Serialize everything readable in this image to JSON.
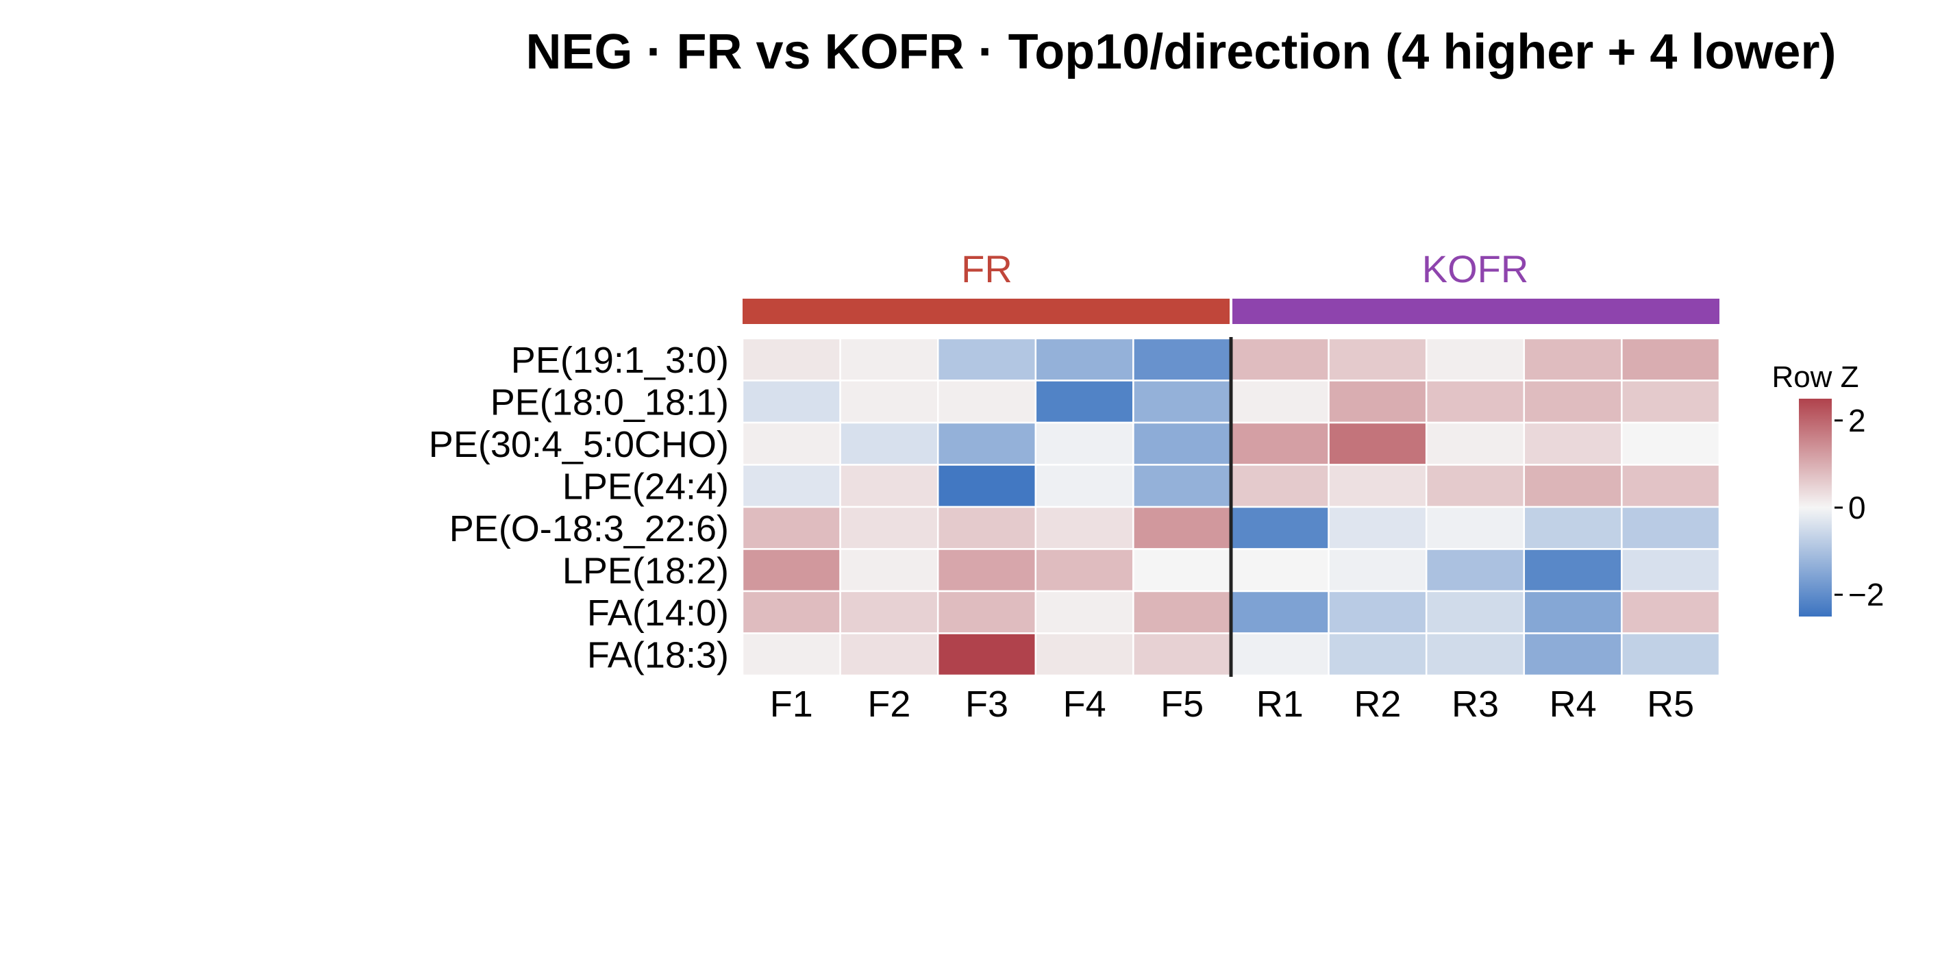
{
  "chart_data": {
    "type": "heatmap",
    "title": "NEG · FR vs KOFR · Top10/direction (4 higher + 4 lower)",
    "rows": [
      "PE(19:1_3:0)",
      "PE(18:0_18:1)",
      "PE(30:4_5:0CHO)",
      "LPE(24:4)",
      "PE(O-18:3_22:6)",
      "LPE(18:2)",
      "FA(14:0)",
      "FA(18:3)"
    ],
    "columns": [
      "F1",
      "F2",
      "F3",
      "F4",
      "F5",
      "R1",
      "R2",
      "R3",
      "R4",
      "R5"
    ],
    "groups": [
      {
        "name": "FR",
        "columns": [
          "F1",
          "F2",
          "F3",
          "F4",
          "F5"
        ],
        "color": "#c0463a"
      },
      {
        "name": "KOFR",
        "columns": [
          "R1",
          "R2",
          "R3",
          "R4",
          "R5"
        ],
        "color": "#8e44ad"
      }
    ],
    "values": [
      [
        0.2,
        0.1,
        -0.9,
        -1.3,
        -1.9,
        0.8,
        0.6,
        0.1,
        0.8,
        1.0
      ],
      [
        -0.4,
        0.1,
        0.1,
        -2.2,
        -1.3,
        0.1,
        1.0,
        0.7,
        0.8,
        0.6
      ],
      [
        0.1,
        -0.4,
        -1.3,
        -0.1,
        -1.4,
        1.2,
        1.8,
        0.1,
        0.4,
        0.0
      ],
      [
        -0.3,
        0.3,
        -2.4,
        -0.1,
        -1.3,
        0.6,
        0.3,
        0.6,
        0.9,
        0.7
      ],
      [
        0.8,
        0.3,
        0.6,
        0.3,
        1.3,
        -2.1,
        -0.3,
        -0.1,
        -0.7,
        -0.8
      ],
      [
        1.3,
        0.1,
        1.1,
        0.8,
        0.0,
        0.0,
        -0.1,
        -1.0,
        -2.1,
        -0.4
      ],
      [
        0.8,
        0.5,
        0.8,
        0.1,
        0.9,
        -1.6,
        -0.8,
        -0.5,
        -1.5,
        0.7
      ],
      [
        0.1,
        0.3,
        2.5,
        0.2,
        0.5,
        -0.1,
        -0.6,
        -0.5,
        -1.4,
        -0.7
      ]
    ],
    "color_scale": {
      "min": -2.5,
      "mid": 0,
      "max": 2.5,
      "low": "#3b73c0",
      "middle": "#f5f5f5",
      "high": "#b0424c"
    },
    "legend": {
      "title": "Row Z",
      "ticks": [
        2,
        0,
        -2
      ],
      "tick_labels": [
        "2",
        "0",
        "−2"
      ],
      "placement": "right"
    }
  }
}
